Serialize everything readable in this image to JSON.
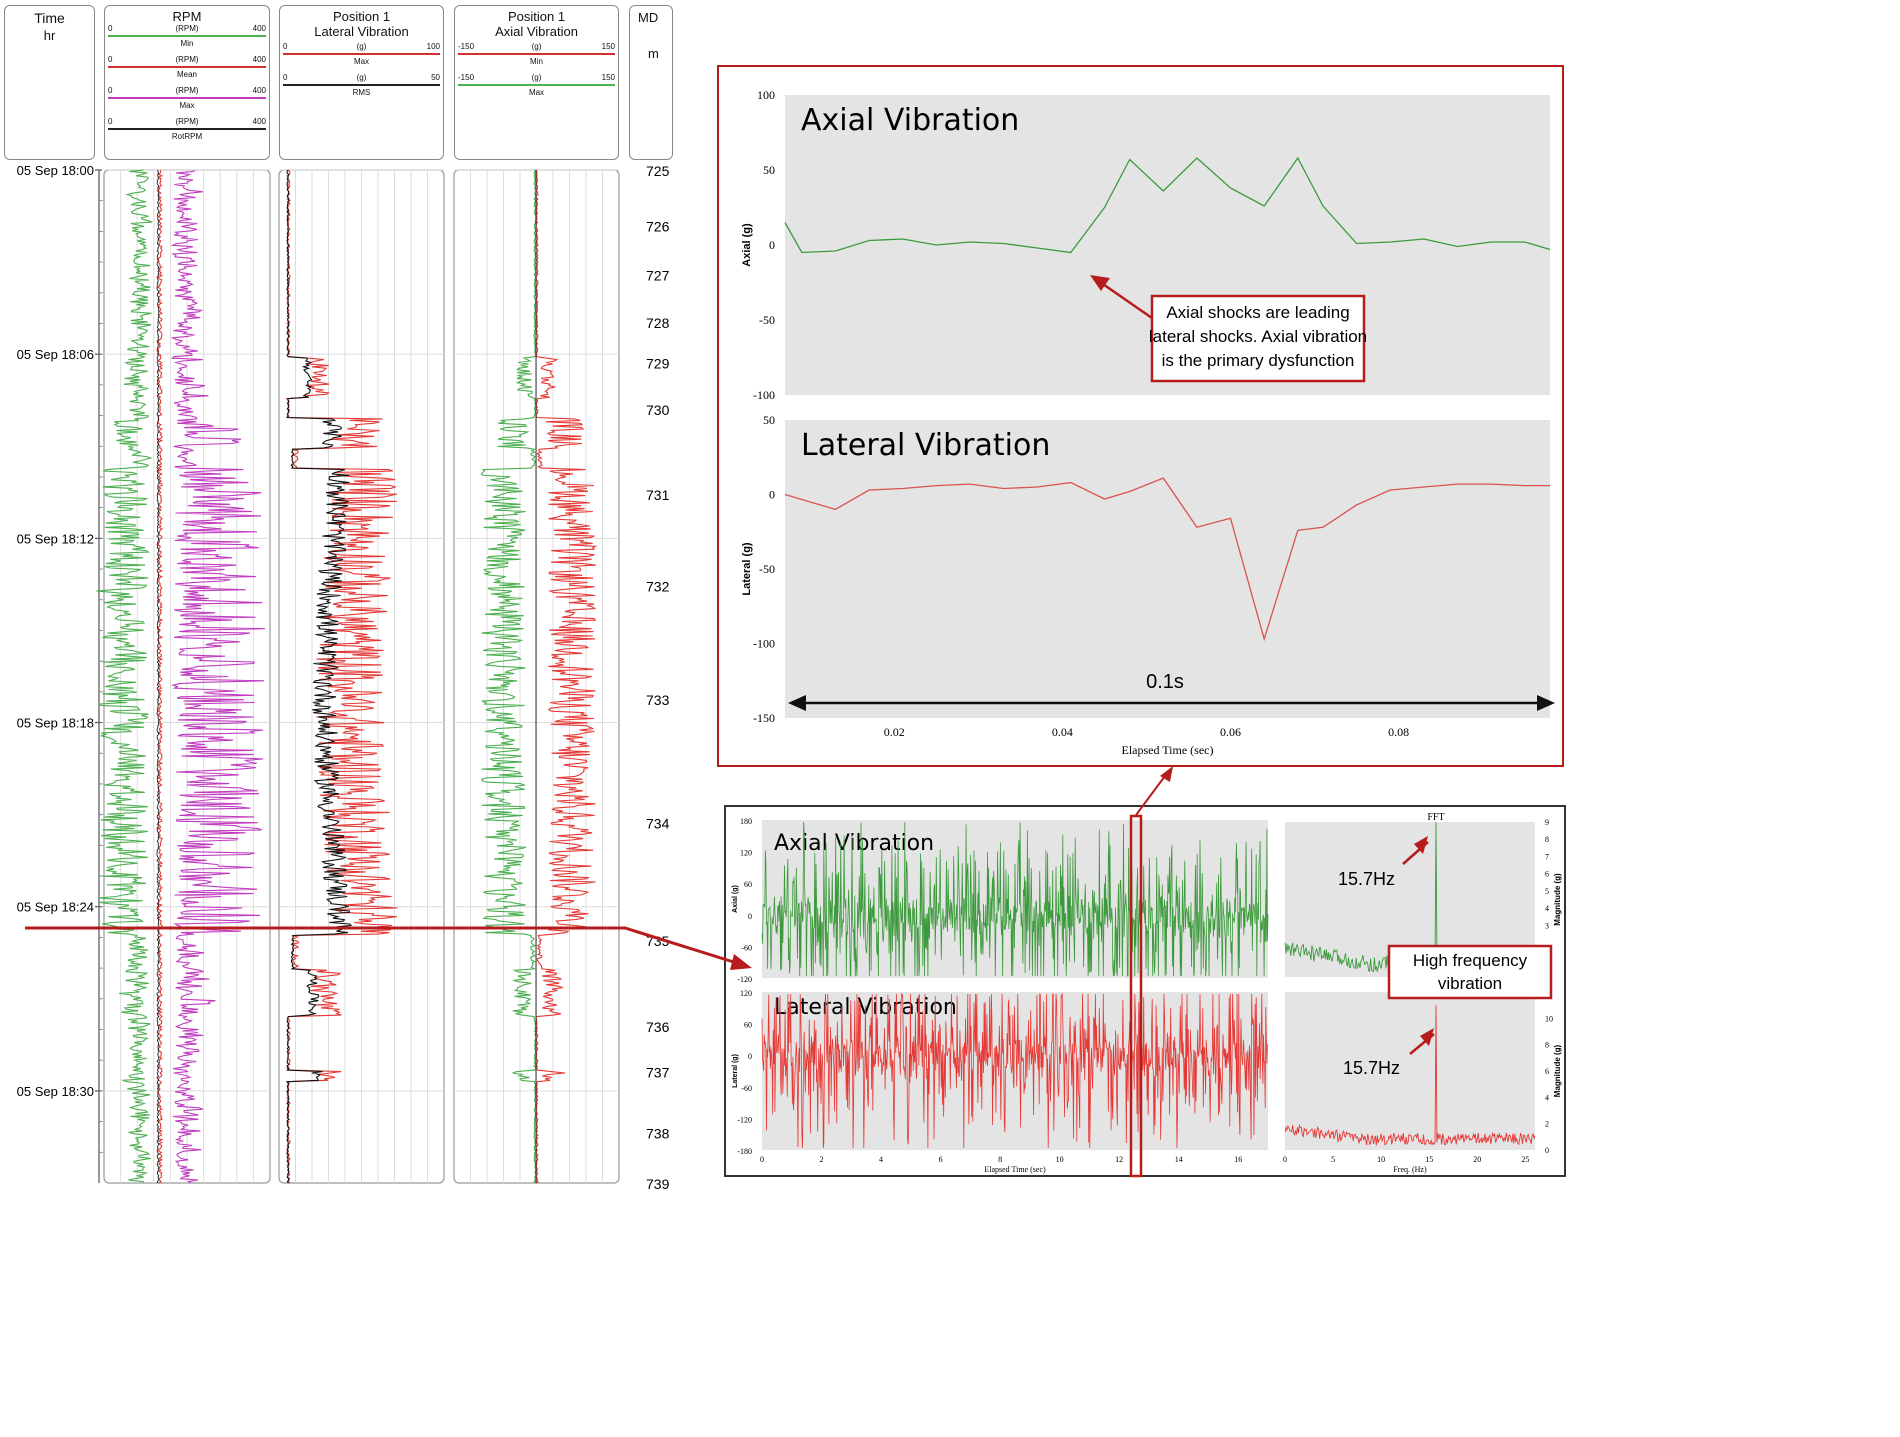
{
  "log": {
    "time_header": {
      "title": "Time",
      "unit": "hr"
    },
    "md_header": {
      "title": "MD",
      "unit": "m"
    },
    "time_labels": [
      "05 Sep 18:00",
      "05 Sep 18:06",
      "05 Sep 18:12",
      "05 Sep 18:18",
      "05 Sep 18:24",
      "05 Sep 18:30"
    ],
    "md_labels": [
      "725",
      "726",
      "727",
      "728",
      "729",
      "730",
      "731",
      "732",
      "733",
      "734",
      "735",
      "736",
      "737",
      "738",
      "739"
    ],
    "md_values": [
      725,
      726,
      727,
      728,
      729,
      730,
      731,
      732,
      733,
      734,
      735,
      736,
      737,
      738,
      739
    ],
    "time_minutes": [
      0,
      6,
      12,
      18,
      24,
      30
    ],
    "time_range_minutes": [
      0,
      33
    ],
    "md_fraction_positions": [
      0.0,
      0.055,
      0.103,
      0.15,
      0.19,
      0.236,
      0.32,
      0.41,
      0.522,
      0.644,
      0.76,
      0.845,
      0.89,
      0.95,
      1.0
    ],
    "tracks": [
      {
        "title": "RPM",
        "subtitle": "",
        "scales": [
          {
            "min": "0",
            "unit": "(RPM)",
            "max": "400",
            "name": "Min",
            "color": "#4caf50"
          },
          {
            "min": "0",
            "unit": "(RPM)",
            "max": "400",
            "name": "Mean",
            "color": "#d32f2f"
          },
          {
            "min": "0",
            "unit": "(RPM)",
            "max": "400",
            "name": "Max",
            "color": "#c03cc0"
          },
          {
            "min": "0",
            "unit": "(RPM)",
            "max": "400",
            "name": "RotRPM",
            "color": "#222222"
          }
        ]
      },
      {
        "title": "Position 1",
        "subtitle": "Lateral Vibration",
        "scales": [
          {
            "min": "0",
            "unit": "(g)",
            "max": "100",
            "name": "Max",
            "color": "#d32f2f"
          },
          {
            "min": "0",
            "unit": "(g)",
            "max": "50",
            "name": "RMS",
            "color": "#222222"
          }
        ]
      },
      {
        "title": "Position 1",
        "subtitle": "Axial Vibration",
        "scales": [
          {
            "min": "-150",
            "unit": "(g)",
            "max": "150",
            "name": "Min",
            "color": "#d32f2f"
          },
          {
            "min": "-150",
            "unit": "(g)",
            "max": "150",
            "name": "Max",
            "color": "#4caf50"
          }
        ]
      }
    ]
  },
  "chart_data": [
    {
      "type": "line",
      "title": "Axial Vibration",
      "xlabel": "",
      "ylabel": "Axial (g)",
      "ylim": [
        -100,
        100
      ],
      "yticks": [
        100,
        50,
        0,
        -50,
        -100
      ],
      "xlim": [
        0.007,
        0.098
      ],
      "series": [
        {
          "name": "Axial",
          "color": "#3c9a3c",
          "x": [
            0.007,
            0.009,
            0.013,
            0.017,
            0.021,
            0.025,
            0.029,
            0.033,
            0.037,
            0.041,
            0.045,
            0.048,
            0.052,
            0.056,
            0.06,
            0.064,
            0.068,
            0.071,
            0.075,
            0.079,
            0.083,
            0.087,
            0.091,
            0.095,
            0.098
          ],
          "y": [
            15,
            -5,
            -4,
            3,
            4,
            0,
            2,
            1,
            -2,
            -5,
            25,
            57,
            36,
            58,
            38,
            26,
            58,
            26,
            1,
            2,
            4,
            -1,
            2,
            2,
            -3
          ]
        }
      ]
    },
    {
      "type": "line",
      "title": "Lateral Vibration",
      "xlabel": "Elapsed Time (sec)",
      "ylabel": "Lateral (g)",
      "ylim": [
        -150,
        50
      ],
      "yticks": [
        50,
        0,
        -50,
        -100,
        -150
      ],
      "xlim": [
        0.007,
        0.098
      ],
      "xticks": [
        0.02,
        0.04,
        0.06,
        0.08
      ],
      "xtick_labels": [
        "0.02",
        "0.04",
        "0.06",
        "0.08"
      ],
      "series": [
        {
          "name": "Lateral",
          "color": "#d9534f",
          "x": [
            0.007,
            0.01,
            0.013,
            0.017,
            0.021,
            0.025,
            0.029,
            0.033,
            0.037,
            0.041,
            0.045,
            0.048,
            0.052,
            0.056,
            0.06,
            0.064,
            0.068,
            0.071,
            0.075,
            0.079,
            0.083,
            0.087,
            0.091,
            0.095,
            0.098
          ],
          "y": [
            0,
            -5,
            -10,
            3,
            4,
            6,
            7,
            4,
            5,
            8,
            -3,
            2,
            11,
            -22,
            -16,
            -97,
            -24,
            -22,
            -7,
            3,
            5,
            7,
            7,
            6,
            6
          ]
        }
      ]
    },
    {
      "type": "line",
      "title": "Axial Vibration",
      "xlabel": "",
      "ylabel": "Axial (g)",
      "ylim": [
        -120,
        180
      ],
      "yticks": [
        180,
        120,
        60,
        0,
        -60,
        -120
      ],
      "xlim": [
        0,
        17
      ],
      "series": [
        {
          "name": "Axial burst",
          "color": "#3c9a3c",
          "amplitude": 60
        }
      ]
    },
    {
      "type": "line",
      "title": "Lateral Vibration",
      "xlabel": "Elapsed Time (sec)",
      "ylabel": "Lateral (g)",
      "ylim": [
        -180,
        120
      ],
      "yticks": [
        120,
        60,
        0,
        -60,
        -120,
        -180
      ],
      "xlim": [
        0,
        17
      ],
      "xticks": [
        0,
        2,
        4,
        6,
        8,
        10,
        12,
        14,
        16
      ],
      "xtick_labels": [
        "0",
        "2",
        "4",
        "6",
        "8",
        "10",
        "12",
        "14",
        "16"
      ],
      "series": [
        {
          "name": "Lateral burst",
          "color": "#e53935",
          "amplitude": 60
        }
      ]
    },
    {
      "type": "line",
      "title": "FFT",
      "xlabel": "",
      "ylabel": "Magnitude (g)",
      "ylim": [
        0,
        9
      ],
      "yticks": [
        9,
        8,
        7,
        6,
        5,
        4,
        3
      ],
      "xlim": [
        0,
        26
      ],
      "series": [
        {
          "name": "Axial FFT",
          "color": "#3c9a3c",
          "peak_hz": 15.7,
          "peak": 9
        }
      ]
    },
    {
      "type": "line",
      "title": "",
      "xlabel": "Freq. (Hz)",
      "ylabel": "Magnitude (g)",
      "ylim": [
        0,
        12
      ],
      "yticks": [
        10,
        8,
        6,
        4,
        2,
        0
      ],
      "xlim": [
        0,
        26
      ],
      "xticks": [
        0,
        5,
        10,
        15,
        20,
        25
      ],
      "xtick_labels": [
        "0",
        "5",
        "10",
        "15",
        "20",
        "25"
      ],
      "series": [
        {
          "name": "Lateral FFT",
          "color": "#e53935",
          "peak_hz": 15.7,
          "peak": 11
        }
      ]
    }
  ],
  "annotations": {
    "axial_shock_note": [
      "Axial shocks are leading",
      "lateral shocks. Axial vibration",
      "is the primary dysfunction"
    ],
    "duration_label": "0.1s",
    "peak_label_axial": "15.7Hz",
    "peak_label_lateral": "15.7Hz",
    "high_freq_note": [
      "High frequency",
      "vibration"
    ]
  },
  "colors": {
    "frame_red": "#b71c1c",
    "panel_gray": "#e4e4e4",
    "green": "#4caf50",
    "red": "#e53935",
    "magenta": "#c03cc0",
    "black": "#111111"
  }
}
